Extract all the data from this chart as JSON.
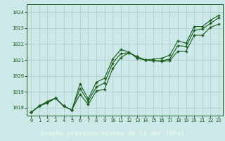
{
  "title": "Graphe pression niveau de la mer (hPa)",
  "x_values": [
    0,
    1,
    2,
    3,
    4,
    5,
    6,
    7,
    8,
    9,
    10,
    11,
    12,
    13,
    14,
    15,
    16,
    17,
    18,
    19,
    20,
    21,
    22,
    23
  ],
  "line1": [
    1017.7,
    1018.1,
    1018.4,
    1018.6,
    1018.1,
    1017.85,
    1019.5,
    1018.55,
    1019.6,
    1019.85,
    1021.05,
    1021.65,
    1021.5,
    1021.1,
    1021.0,
    1021.05,
    1021.1,
    1021.3,
    1022.2,
    1022.05,
    1023.1,
    1023.1,
    1023.5,
    1023.8
  ],
  "line2": [
    1017.7,
    1018.1,
    1018.35,
    1018.6,
    1018.1,
    1017.85,
    1019.2,
    1018.4,
    1019.3,
    1019.55,
    1020.8,
    1021.4,
    1021.45,
    1021.2,
    1021.0,
    1020.95,
    1020.95,
    1021.05,
    1021.9,
    1021.85,
    1022.85,
    1022.95,
    1023.3,
    1023.65
  ],
  "line3": [
    1017.7,
    1018.1,
    1018.3,
    1018.6,
    1018.1,
    1017.85,
    1018.85,
    1018.2,
    1019.05,
    1019.15,
    1020.45,
    1021.15,
    1021.45,
    1021.2,
    1021.0,
    1020.95,
    1020.9,
    1020.95,
    1021.55,
    1021.55,
    1022.55,
    1022.55,
    1023.05,
    1023.25
  ],
  "ylim": [
    1017.5,
    1024.5
  ],
  "yticks": [
    1018,
    1019,
    1020,
    1021,
    1022,
    1023,
    1024
  ],
  "bg_color": "#cce8e8",
  "grid_color": "#aacccc",
  "line_color": "#1a5c1a",
  "marker_color": "#1a5c1a",
  "title_bg": "#1a6b1a",
  "title_color": "#e8f8e8",
  "title_fontsize": 6.5,
  "tick_fontsize": 5.0,
  "xtick_color": "#1a5c1a",
  "ytick_color": "#1a5c1a"
}
